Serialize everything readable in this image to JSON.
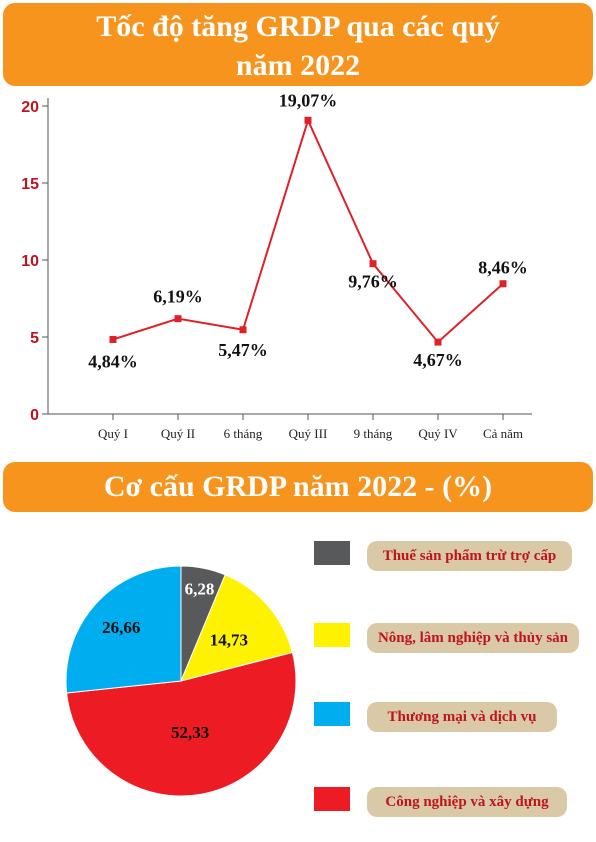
{
  "titles": {
    "line": "Tốc độ tăng GRDP qua các quý",
    "line2": "năm 2022",
    "pie": "Cơ cấu GRDP năm 2022 - (%)"
  },
  "chart_data": [
    {
      "type": "line",
      "categories": [
        "Quý I",
        "Quý II",
        "6 tháng",
        "Quý III",
        "9 tháng",
        "Quý IV",
        "Cả năm"
      ],
      "values": [
        4.84,
        6.19,
        5.47,
        19.07,
        9.76,
        4.67,
        8.46
      ],
      "data_labels": [
        "4,84%",
        "6,19%",
        "5,47%",
        "19,07%",
        "9,76%",
        "4,67%",
        "8,46%"
      ],
      "yticks": [
        "0",
        "5",
        "10",
        "15",
        "20"
      ],
      "ylim": [
        0,
        20
      ],
      "color": "#e02128",
      "grid": false
    },
    {
      "type": "pie",
      "slices": [
        {
          "label": "Thuế sản phẩm trừ trợ cấp",
          "value": 6.28,
          "value_label": "6,28",
          "color": "#58595b"
        },
        {
          "label": "Nông, lâm nghiệp và thủy sản",
          "value": 14.73,
          "value_label": "14,73",
          "color": "#fff200"
        },
        {
          "label": "Công nghiệp và xây dựng",
          "value": 52.33,
          "value_label": "52,33",
          "color": "#ed1c24"
        },
        {
          "label": "Thương mại và dịch vụ",
          "value": 26.66,
          "value_label": "26,66",
          "color": "#00aeef"
        }
      ],
      "legend_order": [
        0,
        1,
        3,
        2
      ],
      "legend_placement": "right"
    }
  ]
}
